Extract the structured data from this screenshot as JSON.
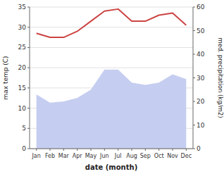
{
  "chart_data": {
    "type": "line",
    "categories": [
      "Jan",
      "Feb",
      "Mar",
      "Apr",
      "May",
      "Jun",
      "Jul",
      "Aug",
      "Sep",
      "Oct",
      "Nov",
      "Dec"
    ],
    "series": [
      {
        "type": "area",
        "axis": "y2",
        "color": "#c5cef0",
        "values": [
          23.0,
          19.5,
          20.0,
          21.5,
          25.0,
          33.5,
          33.5,
          28.0,
          27.0,
          28.0,
          31.5,
          29.5
        ]
      },
      {
        "type": "line",
        "color": "#cc4444",
        "values": [
          28.5,
          27.5,
          27.5,
          29.0,
          31.5,
          34.0,
          34.5,
          31.5,
          31.5,
          33.0,
          33.5,
          30.5
        ]
      }
    ],
    "xlabel": "date (month)",
    "ylabel": "max temp (C)",
    "y2label": "med. precipitation (kg/m2)",
    "ylim": [
      0,
      35
    ],
    "yticks": [
      0,
      5,
      10,
      15,
      20,
      25,
      30,
      35
    ],
    "y2lim": [
      0,
      60
    ],
    "y2ticks": [
      0,
      10,
      20,
      30,
      40,
      50,
      60
    ],
    "grid": true
  }
}
